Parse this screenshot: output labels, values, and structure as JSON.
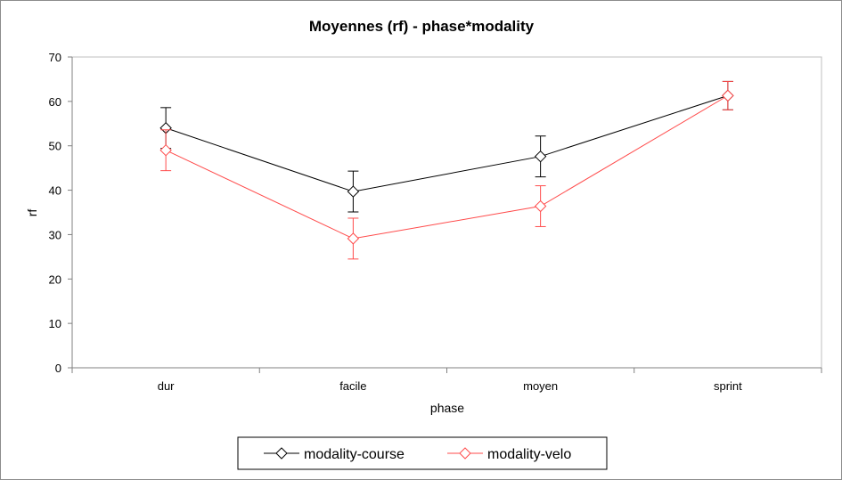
{
  "chart_data": {
    "type": "line",
    "title": "Moyennes (rf) - phase*modality",
    "xlabel": "phase",
    "ylabel": "rf",
    "categories": [
      "dur",
      "facile",
      "moyen",
      "sprint"
    ],
    "ylim": [
      0,
      70
    ],
    "yticks": [
      0,
      10,
      20,
      30,
      40,
      50,
      60,
      70
    ],
    "grid": false,
    "legend_position": "bottom",
    "series": [
      {
        "name": "modality-course",
        "color": "#000000",
        "values": [
          54.0,
          39.7,
          47.6,
          61.3
        ],
        "error": [
          4.6,
          4.6,
          4.6,
          3.2
        ]
      },
      {
        "name": "modality-velo",
        "color": "#ff4b4b",
        "values": [
          49.0,
          29.1,
          36.4,
          61.3
        ],
        "error": [
          4.6,
          4.6,
          4.6,
          3.2
        ]
      }
    ]
  }
}
